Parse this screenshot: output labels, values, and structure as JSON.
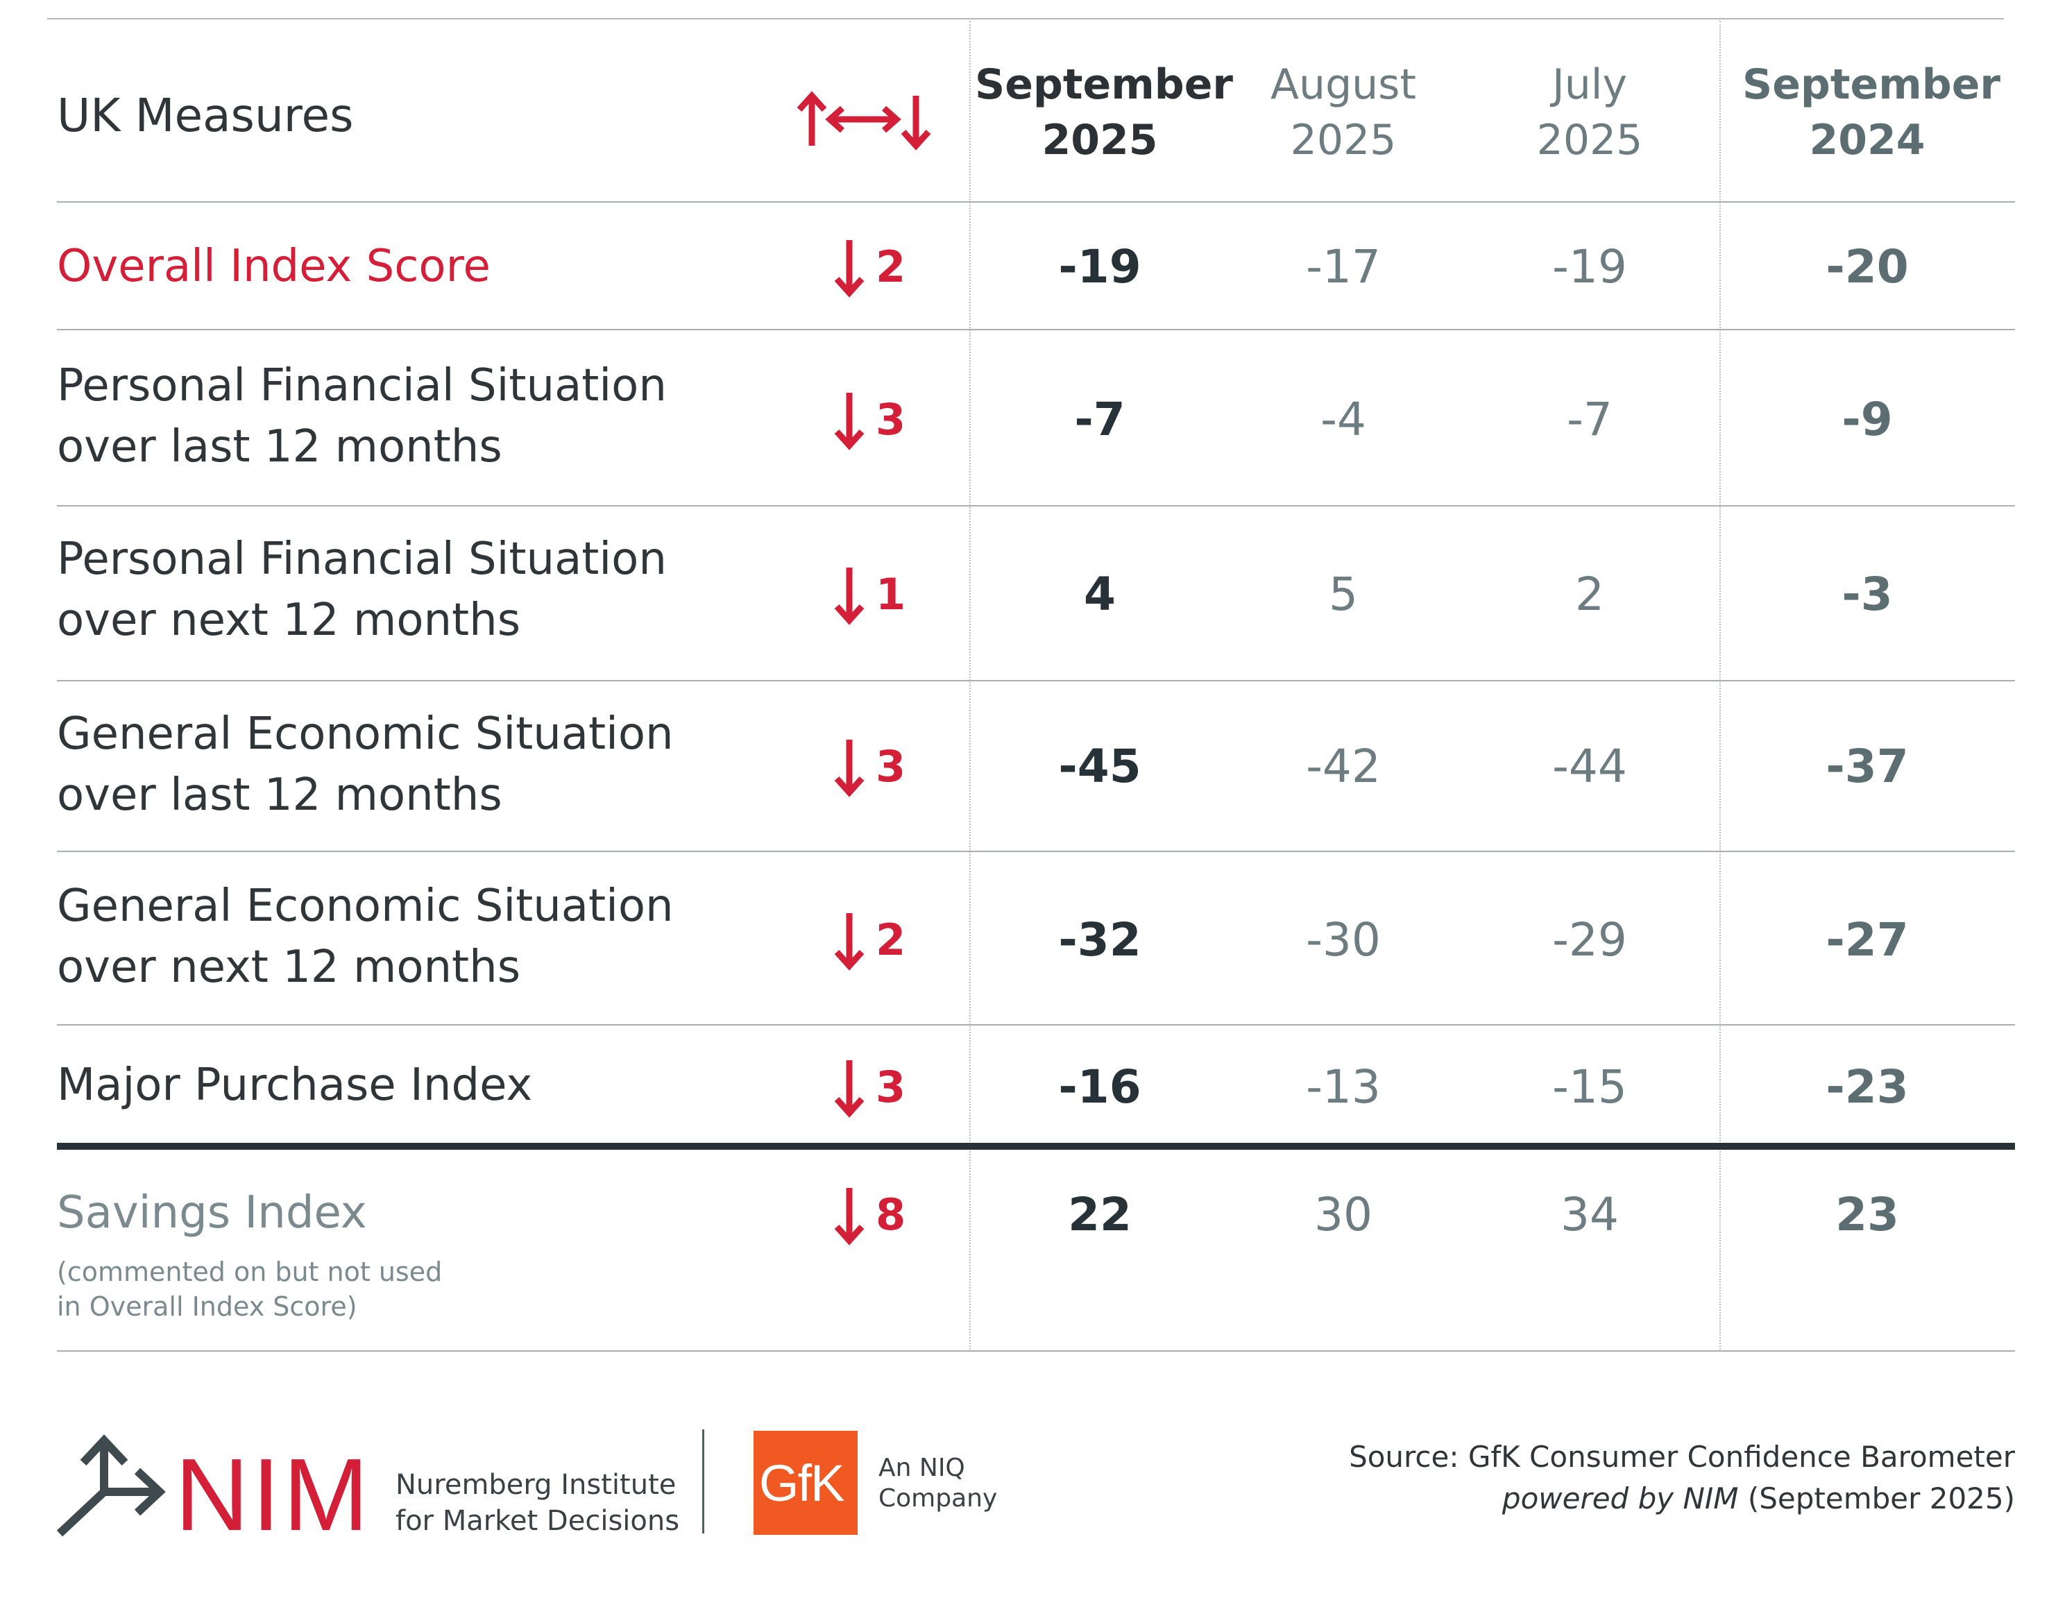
{
  "header": {
    "title": "UK Measures",
    "columns": [
      {
        "line1": "September",
        "line2": "2025"
      },
      {
        "line1": "August",
        "line2": "2025"
      },
      {
        "line1": "July",
        "line2": "2025"
      },
      {
        "line1": "September",
        "line2": "2024"
      }
    ]
  },
  "rows": [
    {
      "label1": "Overall Index Score",
      "label2": "",
      "change": "2",
      "sep2025": "-19",
      "aug2025": "-17",
      "jul2025": "-19",
      "sep2024": "-20"
    },
    {
      "label1": "Personal Financial Situation",
      "label2": "over last 12 months",
      "change": "3",
      "sep2025": "-7",
      "aug2025": "-4",
      "jul2025": "-7",
      "sep2024": "-9"
    },
    {
      "label1": "Personal Financial Situation",
      "label2": "over next 12 months",
      "change": "1",
      "sep2025": "4",
      "aug2025": "5",
      "jul2025": "2",
      "sep2024": "-3"
    },
    {
      "label1": "General Economic Situation",
      "label2": "over last 12 months",
      "change": "3",
      "sep2025": "-45",
      "aug2025": "-42",
      "jul2025": "-44",
      "sep2024": "-37"
    },
    {
      "label1": "General Economic Situation",
      "label2": "over next 12 months",
      "change": "2",
      "sep2025": "-32",
      "aug2025": "-30",
      "jul2025": "-29",
      "sep2024": "-27"
    },
    {
      "label1": "Major Purchase Index",
      "label2": "",
      "change": "3",
      "sep2025": "-16",
      "aug2025": "-13",
      "jul2025": "-15",
      "sep2024": "-23"
    },
    {
      "label1": "Savings Index",
      "note1": "(commented on but not used",
      "note2": "in Overall Index Score)",
      "change": "8",
      "sep2025": "22",
      "aug2025": "30",
      "jul2025": "34",
      "sep2024": "23"
    }
  ],
  "footer": {
    "nim_logo": "NIM",
    "nim_line1": "Nuremberg Institute",
    "nim_line2": "for Market Decisions",
    "gfk_logo": "GfK",
    "niq_line1": "An NIQ",
    "niq_line2": "Company",
    "source_line1": "Source: GfK Consumer Confidence Barometer",
    "source_italic": "powered by NIM",
    "source_rest": " (September 2025)"
  },
  "colors": {
    "accent": "#d31f38",
    "gfk_orange": "#f05a22",
    "dark": "#263238",
    "muted": "#6c7c80"
  },
  "icons": {
    "header": "up-down-both-arrows-icon",
    "change": "down-arrow-icon",
    "nim": "nim-arrows-icon"
  }
}
